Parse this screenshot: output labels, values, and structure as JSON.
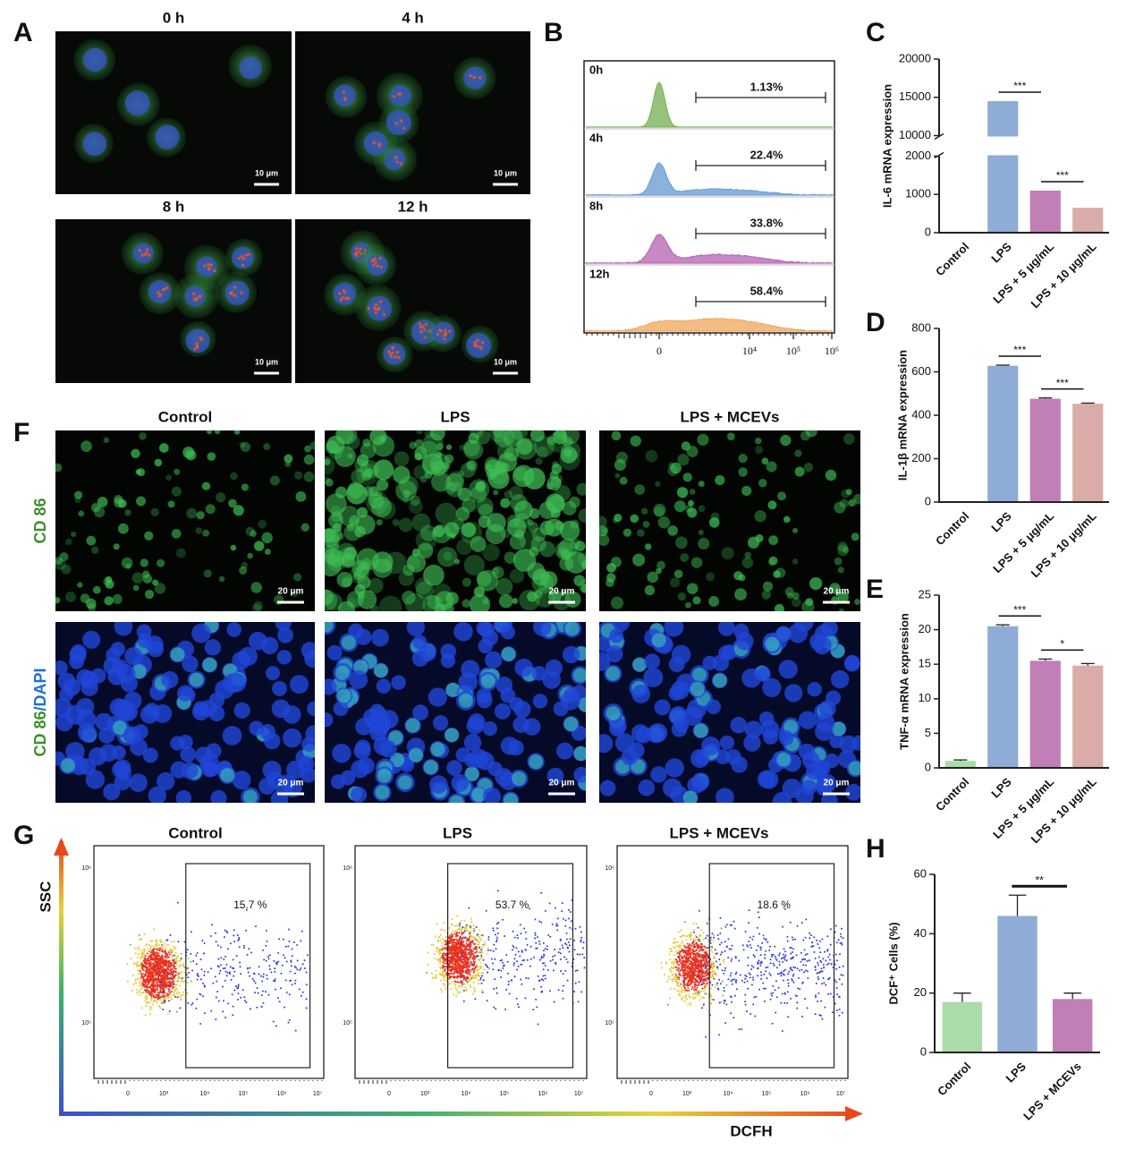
{
  "panel_labels": [
    "A",
    "B",
    "C",
    "D",
    "E",
    "F",
    "G",
    "H"
  ],
  "panel_a": {
    "titles": [
      "0 h",
      "4 h",
      "8 h",
      "12 h"
    ],
    "scale_bar": "10 μm"
  },
  "panel_b": {
    "rows": [
      {
        "label": "0h",
        "percent": "1.13%",
        "color": "#7db35a"
      },
      {
        "label": "4h",
        "percent": "22.4%",
        "color": "#6d9fd6"
      },
      {
        "label": "8h",
        "percent": "33.8%",
        "color": "#b86bb4"
      },
      {
        "label": "12h",
        "percent": "58.4%",
        "color": "#f0ab66"
      }
    ],
    "x_tick_labels": [
      "0",
      "10⁴",
      "10⁵",
      "10⁶"
    ]
  },
  "panel_f": {
    "columns": [
      "Control",
      "LPS",
      "LPS + MCEVs"
    ],
    "row_labels": [
      {
        "parts": [
          "CD 86"
        ]
      },
      {
        "parts": [
          "CD 86",
          "/DAPI"
        ]
      }
    ],
    "part_colors": [
      "#3f8f2e",
      "#1f6fd0"
    ],
    "scale_bar": "20 μm"
  },
  "panel_g": {
    "columns": [
      "Control",
      "LPS",
      "LPS + MCEVs"
    ],
    "percents": [
      "15.7 %",
      "53.7 %",
      "18.6 %"
    ],
    "y_axis_label": "SSC",
    "x_axis_label": "DCFH",
    "y_tick_labels": [
      "10⁶",
      "10⁵"
    ],
    "x_tick_labels": [
      "0",
      "10³",
      "10⁴",
      "10⁵",
      "10⁶",
      "10⁷"
    ]
  },
  "chart_data": [
    {
      "type": "bar",
      "y_label": "IL-6 mRNA expression",
      "categories": [
        "Control",
        "LPS",
        "LPS + 5 μg/mL",
        "LPS + 10 μg/mL"
      ],
      "values": [
        1,
        14500,
        1100,
        650
      ],
      "colors": [
        "#a9dca9",
        "#8eacd6",
        "#c07fb6",
        "#d9aca8"
      ],
      "ylim": [
        0,
        20000
      ],
      "yticks": [
        0,
        1000,
        2000,
        10000,
        15000,
        20000
      ],
      "axis_break": [
        2000,
        10000
      ],
      "significance": [
        {
          "label": "***",
          "pair": [
            1,
            2
          ]
        },
        {
          "label": "***",
          "pair": [
            2,
            3
          ]
        }
      ]
    },
    {
      "type": "bar",
      "y_label": "IL-1β mRNA expression",
      "categories": [
        "Control",
        "LPS",
        "LPS + 5 μg/mL",
        "LPS + 10 μg/mL"
      ],
      "values": [
        1,
        628,
        476,
        453
      ],
      "errors": [
        0,
        3,
        4,
        3
      ],
      "colors": [
        "#a9dca9",
        "#8eacd6",
        "#c07fb6",
        "#d9aca8"
      ],
      "ylim": [
        0,
        800
      ],
      "yticks": [
        0,
        200,
        400,
        600,
        800
      ],
      "significance": [
        {
          "label": "***",
          "pair": [
            1,
            2
          ]
        },
        {
          "label": "***",
          "pair": [
            2,
            3
          ]
        }
      ]
    },
    {
      "type": "bar",
      "y_label": "TNF-α mRNA expression",
      "categories": [
        "Control",
        "LPS",
        "LPS + 5 μg/mL",
        "LPS + 10 μg/mL"
      ],
      "values": [
        1,
        20.5,
        15.5,
        14.8
      ],
      "errors": [
        0.15,
        0.2,
        0.25,
        0.3
      ],
      "colors": [
        "#a9dca9",
        "#8eacd6",
        "#c07fb6",
        "#d9aca8"
      ],
      "ylim": [
        0,
        25
      ],
      "yticks": [
        0,
        5,
        10,
        15,
        20,
        25
      ],
      "significance": [
        {
          "label": "***",
          "pair": [
            1,
            2
          ]
        },
        {
          "label": "*",
          "pair": [
            2,
            3
          ]
        }
      ]
    },
    {
      "type": "bar",
      "y_label": "DCF⁺ Cells (%)",
      "categories": [
        "Control",
        "LPS",
        "LPS + MCEVs"
      ],
      "values": [
        17,
        46,
        18
      ],
      "errors": [
        3,
        7,
        2
      ],
      "colors": [
        "#a9dca9",
        "#8eacd6",
        "#c07fb6"
      ],
      "ylim": [
        0,
        60
      ],
      "yticks": [
        0,
        20,
        40,
        60
      ],
      "significance": [
        {
          "label": "**",
          "pair": [
            1,
            2
          ]
        }
      ]
    }
  ]
}
